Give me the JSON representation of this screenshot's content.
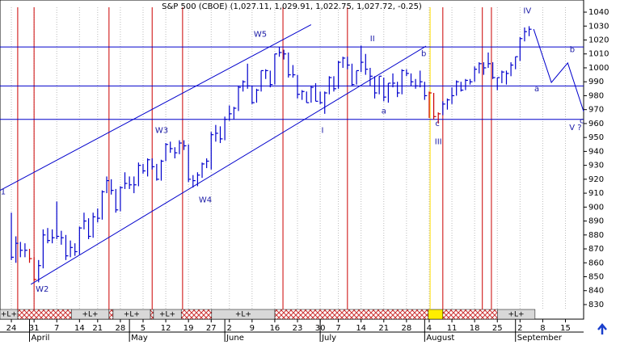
{
  "chart_data": {
    "type": "ohlc",
    "title": "S&P 500 (CBOE) (1,027.11, 1,029.91, 1,022.75, 1,027.72, -0.25)",
    "color": "#0000cc",
    "highlight_color": "#cc0000",
    "highlight_bars": [
      4,
      5,
      92,
      93,
      94
    ],
    "high": [
      896,
      879,
      875,
      874,
      870,
      864,
      862,
      884,
      885,
      884,
      904,
      883,
      880,
      876,
      874,
      886,
      896,
      892,
      896,
      899,
      912,
      922,
      920,
      913,
      915,
      925,
      922,
      922,
      932,
      931,
      935,
      935,
      931,
      934,
      946,
      947,
      943,
      948,
      948,
      945,
      923,
      925,
      932,
      935,
      954,
      959,
      958,
      965,
      973,
      972,
      987,
      991,
      1003,
      987,
      985,
      998,
      999,
      998,
      1010,
      1015,
      1013,
      1011,
      1002,
      995,
      984,
      983,
      987,
      989,
      983,
      983,
      994,
      994,
      1005,
      1008,
      1008,
      1003,
      998,
      1016,
      1010,
      1000,
      994,
      994,
      993,
      989,
      996,
      990,
      999,
      999,
      996,
      992,
      998,
      990,
      983,
      982,
      968,
      976,
      978,
      986,
      991,
      990,
      992,
      992,
      1001,
      1004,
      1004,
      1011,
      1004,
      993,
      998,
      998,
      1004,
      1008,
      1022,
      1029,
      1029.91
    ],
    "low": [
      862,
      860,
      864,
      864,
      860,
      847,
      846,
      856,
      874,
      874,
      877,
      873,
      862,
      864,
      865,
      866,
      884,
      877,
      878,
      889,
      891,
      910,
      909,
      896,
      897,
      913,
      913,
      910,
      915,
      924,
      922,
      927,
      919,
      919,
      933,
      939,
      935,
      938,
      941,
      918,
      914,
      915,
      921,
      928,
      927,
      947,
      946,
      948,
      962,
      963,
      969,
      983,
      985,
      974,
      975,
      983,
      992,
      986,
      988,
      1008,
      1006,
      993,
      993,
      978,
      977,
      975,
      975,
      976,
      974,
      967,
      981,
      983,
      985,
      1000,
      999,
      987,
      988,
      997,
      995,
      987,
      978,
      981,
      976,
      975,
      986,
      979,
      981,
      994,
      987,
      985,
      986,
      977,
      964,
      963,
      960,
      966,
      970,
      974,
      980,
      983,
      984,
      988,
      990,
      996,
      995,
      1000,
      992,
      984,
      989,
      988,
      994,
      999,
      1005,
      1019,
      1022.75
    ],
    "close": [
      864,
      874,
      869,
      869,
      863,
      848,
      858,
      880,
      876,
      878,
      879,
      878,
      865,
      871,
      868,
      885,
      890,
      879,
      893,
      892,
      911,
      919,
      912,
      898,
      914,
      917,
      916,
      916,
      930,
      926,
      934,
      929,
      920,
      933,
      945,
      942,
      939,
      946,
      944,
      920,
      919,
      923,
      931,
      933,
      952,
      953,
      949,
      963,
      967,
      971,
      986,
      990,
      987,
      975,
      984,
      998,
      998,
      988,
      1010,
      1011,
      1010,
      995,
      995,
      981,
      983,
      975,
      986,
      976,
      975,
      982,
      993,
      985,
      1004,
      1007,
      1002,
      988,
      998,
      1004,
      999,
      994,
      982,
      994,
      979,
      989,
      989,
      982,
      998,
      996,
      990,
      987,
      990,
      980,
      982,
      965,
      967,
      974,
      977,
      980,
      990,
      984,
      991,
      990,
      999,
      1003,
      1000,
      1003,
      993,
      993,
      997,
      996,
      1002,
      1008,
      1021,
      1026,
      1027.72
    ],
    "xlim": [
      -2.5,
      126
    ],
    "ylim": [
      826.5,
      1043.5
    ],
    "yticks": [
      830,
      840,
      850,
      860,
      870,
      880,
      890,
      900,
      910,
      920,
      930,
      940,
      950,
      960,
      970,
      980,
      990,
      1000,
      1010,
      1020,
      1030,
      1040
    ],
    "xticks": [
      {
        "value": 0,
        "label": "24"
      },
      {
        "value": 5,
        "label": "31"
      },
      {
        "value": 10,
        "label": "7"
      },
      {
        "value": 15,
        "label": "14"
      },
      {
        "value": 19,
        "label": "21"
      },
      {
        "value": 24,
        "label": "28"
      },
      {
        "value": 29,
        "label": "5"
      },
      {
        "value": 34,
        "label": "12"
      },
      {
        "value": 39,
        "label": "19"
      },
      {
        "value": 44,
        "label": "27"
      },
      {
        "value": 48,
        "label": "2"
      },
      {
        "value": 53,
        "label": "9"
      },
      {
        "value": 58,
        "label": "16"
      },
      {
        "value": 63,
        "label": "23"
      },
      {
        "value": 68,
        "label": "30"
      },
      {
        "value": 72,
        "label": "7"
      },
      {
        "value": 77,
        "label": "14"
      },
      {
        "value": 82,
        "label": "21"
      },
      {
        "value": 87,
        "label": "28"
      },
      {
        "value": 92,
        "label": "4"
      },
      {
        "value": 97,
        "label": "11"
      },
      {
        "value": 102,
        "label": "18"
      },
      {
        "value": 107,
        "label": "25"
      },
      {
        "value": 112,
        "label": "2"
      },
      {
        "value": 117,
        "label": "8"
      },
      {
        "value": 122,
        "label": "15"
      }
    ],
    "months": [
      {
        "value": 4,
        "label": "April"
      },
      {
        "value": 26,
        "label": "May"
      },
      {
        "value": 47,
        "label": "June"
      },
      {
        "value": 68,
        "label": "July"
      },
      {
        "value": 91,
        "label": "August"
      },
      {
        "value": 111,
        "label": "September"
      }
    ],
    "hlines": [
      1015,
      987,
      963
    ],
    "red_lines": [
      1.4,
      5,
      21.5,
      31,
      37.7,
      59.8,
      74,
      95,
      103.7,
      105.7
    ],
    "yellow_line": 92.2,
    "channel": [
      {
        "x": [
          -2.5,
          66
        ],
        "y": [
          912,
          1031
        ]
      },
      {
        "x": [
          4.3,
          91.3
        ],
        "y": [
          844.5,
          1015.6
        ]
      }
    ],
    "projection": {
      "x": [
        115,
        118.9,
        122.5,
        126
      ],
      "y": [
        1027.8,
        989.5,
        1003.5,
        968.7
      ]
    },
    "annotations": [
      {
        "text": "1",
        "x": -1.8,
        "y": 911
      },
      {
        "text": "W2",
        "x": 6.8,
        "y": 841
      },
      {
        "text": "W3",
        "x": 33.1,
        "y": 955
      },
      {
        "text": "W4",
        "x": 42.7,
        "y": 905
      },
      {
        "text": "W5",
        "x": 54.8,
        "y": 1024
      },
      {
        "text": "II",
        "x": 79.5,
        "y": 1021
      },
      {
        "text": "I",
        "x": 68.5,
        "y": 955
      },
      {
        "text": "a",
        "x": 82,
        "y": 969
      },
      {
        "text": "b",
        "x": 90.8,
        "y": 1010
      },
      {
        "text": "c",
        "x": 93.8,
        "y": 960
      },
      {
        "text": "III",
        "x": 94,
        "y": 947
      },
      {
        "text": "IV",
        "x": 113.6,
        "y": 1041
      },
      {
        "text": "a",
        "x": 115.7,
        "y": 985
      },
      {
        "text": "b",
        "x": 123.5,
        "y": 1013
      },
      {
        "text": "c",
        "x": 125.6,
        "y": 962
      },
      {
        "text": "V ?",
        "x": 124.2,
        "y": 957
      }
    ],
    "strip_labeled": [
      {
        "start": -2.5,
        "end": 1.4,
        "label": "+L+"
      },
      {
        "start": 13.2,
        "end": 21.5,
        "label": "+L+"
      },
      {
        "start": 22.4,
        "end": 30.6,
        "label": "+L+"
      },
      {
        "start": 31.3,
        "end": 37.4,
        "label": "+L+"
      },
      {
        "start": 44.1,
        "end": 58,
        "label": "+L+"
      },
      {
        "start": 107,
        "end": 115.3,
        "label": "+L+"
      }
    ],
    "strip_hatched": [
      {
        "start": 1.4,
        "end": 13.2
      },
      {
        "start": 21.5,
        "end": 22.4
      },
      {
        "start": 30.6,
        "end": 31.3
      },
      {
        "start": 37.4,
        "end": 44.1
      },
      {
        "start": 58,
        "end": 91.8
      },
      {
        "start": 95,
        "end": 107
      }
    ],
    "strip_highlight": {
      "start": 91.8,
      "end": 95
    }
  }
}
